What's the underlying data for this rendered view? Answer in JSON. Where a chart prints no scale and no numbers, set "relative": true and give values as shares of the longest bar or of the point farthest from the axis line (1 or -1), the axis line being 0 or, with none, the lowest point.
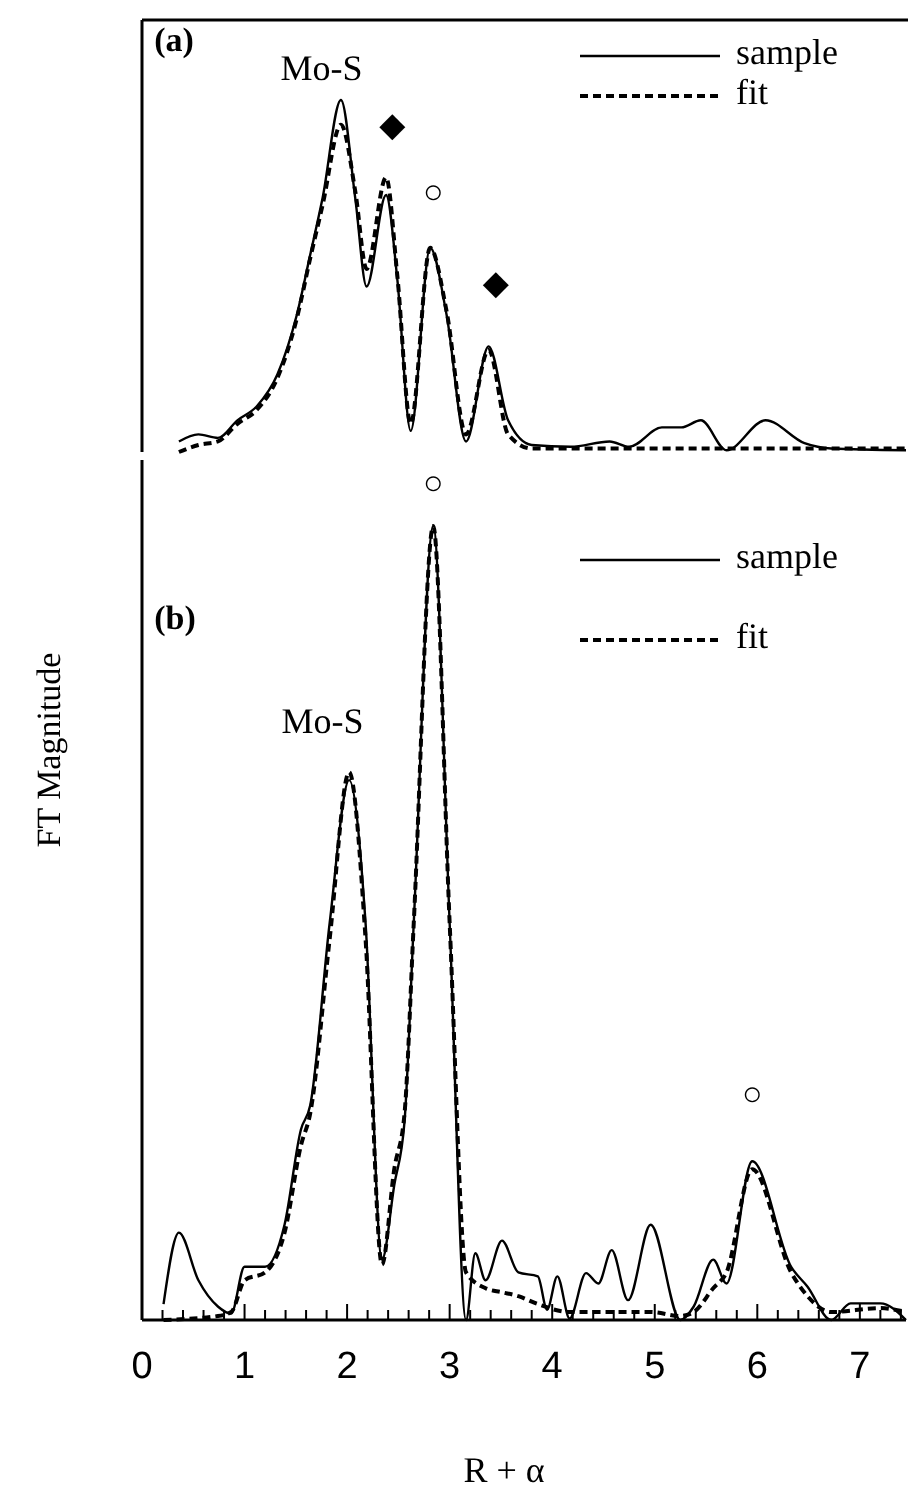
{
  "chart_data": [
    {
      "type": "line",
      "relative": true,
      "xlim": [
        0,
        7.45
      ],
      "tick_labels": false,
      "legend": "top right",
      "grid": false,
      "annotations": [
        "(a)",
        "Mo-S",
        "◆",
        "○",
        "◆"
      ],
      "series": [
        {
          "name": "sample",
          "color": "#000000",
          "line_style": "solid",
          "x": [
            0.36,
            0.55,
            0.74,
            0.93,
            1.12,
            1.32,
            1.51,
            1.64,
            1.76,
            1.94,
            2.08,
            2.19,
            2.38,
            2.49,
            2.62,
            2.81,
            2.97,
            3.16,
            3.38,
            3.57,
            3.8,
            4.18,
            4.56,
            4.75,
            5.07,
            5.26,
            5.45,
            5.7,
            6.08,
            6.46,
            6.72,
            7.45
          ],
          "values": [
            0.03,
            0.05,
            0.04,
            0.09,
            0.13,
            0.22,
            0.39,
            0.56,
            0.72,
            1,
            0.72,
            0.47,
            0.73,
            0.49,
            0.06,
            0.58,
            0.39,
            0.03,
            0.3,
            0.09,
            0.02,
            0.015,
            0.03,
            0.015,
            0.07,
            0.07,
            0.09,
            0.005,
            0.09,
            0.025,
            0.01,
            0.005
          ]
        },
        {
          "name": "fit",
          "color": "#000000",
          "line_style": "dashed",
          "x": [
            0.36,
            0.55,
            0.74,
            0.93,
            1.12,
            1.32,
            1.51,
            1.64,
            1.76,
            1.94,
            2.08,
            2.19,
            2.38,
            2.49,
            2.62,
            2.81,
            2.97,
            3.16,
            3.38,
            3.57,
            3.8,
            4.18,
            4.56,
            5.07,
            5.7,
            6.46,
            7.45
          ],
          "values": [
            0,
            0.02,
            0.03,
            0.08,
            0.12,
            0.21,
            0.38,
            0.55,
            0.7,
            0.93,
            0.74,
            0.52,
            0.78,
            0.5,
            0.08,
            0.58,
            0.4,
            0.05,
            0.29,
            0.05,
            0.01,
            0.01,
            0.01,
            0.01,
            0.01,
            0.01,
            0.01
          ]
        }
      ]
    },
    {
      "type": "line",
      "relative": true,
      "xlim": [
        0,
        7.45
      ],
      "xticks": [
        0,
        {
          "value": 0.2,
          "label": null
        },
        {
          "value": 0.4,
          "label": null
        },
        {
          "value": 0.6,
          "label": null
        },
        {
          "value": 0.8,
          "label": null
        },
        1,
        {
          "value": 1.2,
          "label": null
        },
        {
          "value": 1.4,
          "label": null
        },
        {
          "value": 1.6,
          "label": null
        },
        {
          "value": 1.8,
          "label": null
        },
        2,
        {
          "value": 2.2,
          "label": null
        },
        {
          "value": 2.4,
          "label": null
        },
        {
          "value": 2.6,
          "label": null
        },
        {
          "value": 2.8,
          "label": null
        },
        3,
        {
          "value": 3.2,
          "label": null
        },
        {
          "value": 3.4,
          "label": null
        },
        {
          "value": 3.6,
          "label": null
        },
        {
          "value": 3.8,
          "label": null
        },
        4,
        {
          "value": 4.2,
          "label": null
        },
        {
          "value": 4.4,
          "label": null
        },
        {
          "value": 4.6,
          "label": null
        },
        {
          "value": 4.8,
          "label": null
        },
        5,
        {
          "value": 5.2,
          "label": null
        },
        {
          "value": 5.4,
          "label": null
        },
        {
          "value": 5.6,
          "label": null
        },
        {
          "value": 5.8,
          "label": null
        },
        6,
        {
          "value": 6.2,
          "label": null
        },
        {
          "value": 6.4,
          "label": null
        },
        {
          "value": 6.6,
          "label": null
        },
        {
          "value": 6.8,
          "label": null
        },
        7,
        {
          "value": 7.2,
          "label": null
        },
        {
          "value": 7.4,
          "label": null
        }
      ],
      "tick_labels": "x",
      "xlabel": "R + α",
      "ylabel": "FT Magnitude",
      "legend": "top right",
      "grid": false,
      "annotations": [
        "(b)",
        "Mo-S",
        "○",
        "○"
      ],
      "series": [
        {
          "name": "sample",
          "color": "#000000",
          "line_style": "solid",
          "x": [
            0.21,
            0.36,
            0.55,
            0.74,
            0.87,
            1.0,
            1.2,
            1.39,
            1.55,
            1.64,
            1.83,
            2.02,
            2.18,
            2.34,
            2.46,
            2.56,
            2.65,
            2.84,
            3.0,
            3.16,
            3.25,
            3.35,
            3.51,
            3.67,
            3.86,
            3.95,
            4.05,
            4.17,
            4.33,
            4.45,
            4.58,
            4.74,
            4.96,
            5.25,
            5.38,
            5.57,
            5.7,
            5.95,
            6.33,
            6.49,
            6.72,
            6.91,
            7.2,
            7.45
          ],
          "values": [
            0.02,
            0.11,
            0.05,
            0.017,
            0.008,
            0.067,
            0.067,
            0.12,
            0.24,
            0.27,
            0.5,
            0.68,
            0.5,
            0.076,
            0.17,
            0.25,
            0.5,
            1,
            0.5,
            0,
            0.084,
            0.05,
            0.1,
            0.06,
            0.055,
            0.013,
            0.055,
            0.002,
            0.059,
            0.046,
            0.088,
            0.025,
            0.12,
            0,
            0.017,
            0.076,
            0.046,
            0.2,
            0.067,
            0.042,
            0,
            0.021,
            0.021,
            0
          ]
        },
        {
          "name": "fit",
          "color": "#000000",
          "line_style": "dashed",
          "x": [
            0.21,
            0.74,
            0.87,
            1.0,
            1.2,
            1.39,
            1.55,
            1.64,
            1.83,
            2.02,
            2.18,
            2.34,
            2.46,
            2.56,
            2.65,
            2.84,
            3.0,
            3.16,
            3.35,
            3.51,
            3.67,
            3.86,
            4.17,
            4.58,
            4.96,
            5.25,
            5.38,
            5.57,
            5.7,
            5.95,
            6.33,
            6.49,
            6.72,
            7.2,
            7.45
          ],
          "values": [
            0,
            0.005,
            0.01,
            0.05,
            0.06,
            0.11,
            0.22,
            0.26,
            0.48,
            0.69,
            0.48,
            0.07,
            0.19,
            0.26,
            0.5,
            1,
            0.5,
            0.06,
            0.04,
            0.035,
            0.03,
            0.02,
            0.01,
            0.01,
            0.01,
            0.005,
            0.01,
            0.04,
            0.06,
            0.19,
            0.06,
            0.03,
            0.01,
            0.015,
            0.01
          ]
        }
      ]
    }
  ]
}
